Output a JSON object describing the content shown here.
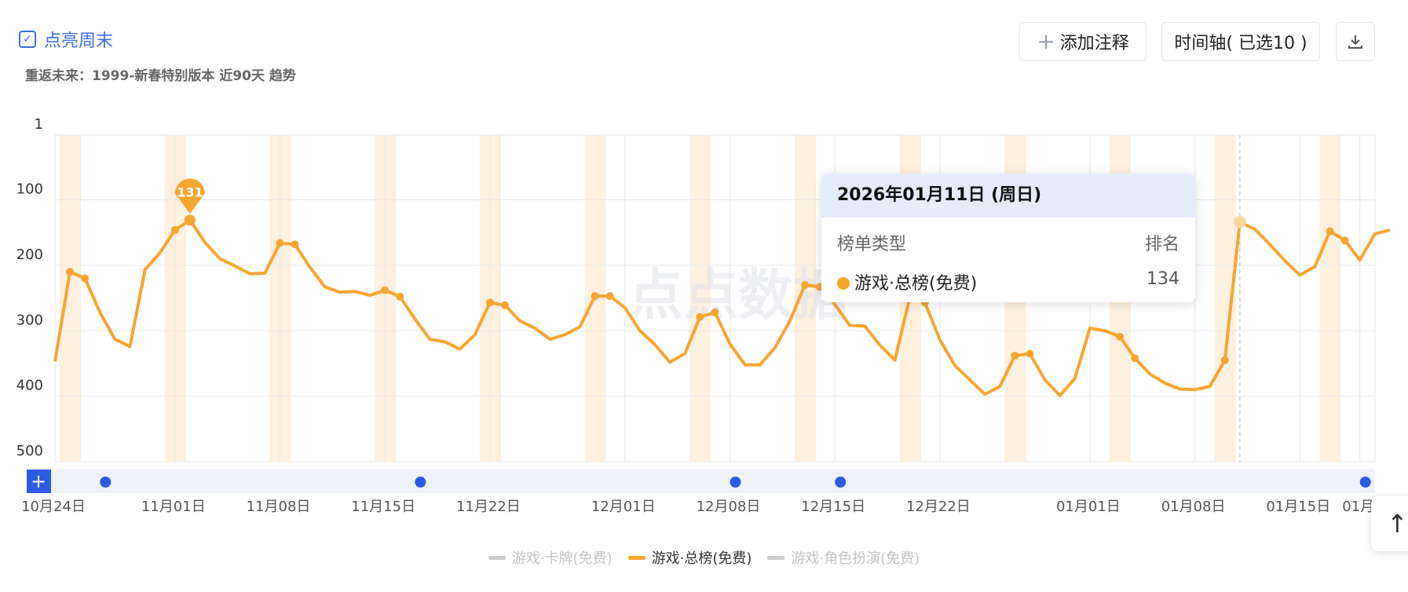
{
  "toggle": {
    "label": "点亮周末",
    "checked": true
  },
  "subtitle": "重返未来：1999-新春特别版本 近90天 趋势",
  "toolbar": {
    "add_note": "添加注释",
    "timeline": "时间轴( 已选10 )"
  },
  "watermark": "点点数据",
  "timeline_plus": "+",
  "colors": {
    "line": "#f7a531",
    "accent": "#2d5be3",
    "weekend": "#fdf0df",
    "grid": "#e8e8e8"
  },
  "tooltip": {
    "date": "2026年01月11日 (周日)",
    "col_type": "榜单类型",
    "col_rank": "排名",
    "series": "游戏·总榜(免费)",
    "rank": "134"
  },
  "scroll_top_icon": "arrow-up-icon",
  "chart_data": {
    "type": "line",
    "title": "",
    "y_axis": {
      "reversed": true,
      "ticks": [
        "1",
        "100",
        "200",
        "300",
        "400",
        "500"
      ],
      "range": [
        1,
        500
      ]
    },
    "x_axis": {
      "start": "10月24日",
      "tick_labels": [
        {
          "day": 0,
          "label": "10月24日"
        },
        {
          "day": 8,
          "label": "11月01日"
        },
        {
          "day": 15,
          "label": "11月08日"
        },
        {
          "day": 22,
          "label": "11月15日"
        },
        {
          "day": 29,
          "label": "11月22日"
        },
        {
          "day": 38,
          "label": "12月01日"
        },
        {
          "day": 45,
          "label": "12月08日"
        },
        {
          "day": 52,
          "label": "12月15日"
        },
        {
          "day": 59,
          "label": "12月22日"
        },
        {
          "day": 69,
          "label": "01月01日"
        },
        {
          "day": 76,
          "label": "01月08日"
        },
        {
          "day": 83,
          "label": "01月15日"
        },
        {
          "day": 87,
          "label": "01月"
        }
      ]
    },
    "weekend_days": [
      1,
      8,
      15,
      22,
      29,
      36,
      43,
      50,
      57,
      64,
      71,
      78,
      85
    ],
    "grid": true,
    "legend": {
      "placement": "bottom-center",
      "entries": [
        {
          "name": "游戏·卡牌(免费)",
          "active": false,
          "color": "#cccccc"
        },
        {
          "name": "游戏·总榜(免费)",
          "active": true,
          "color": "#f7a531"
        },
        {
          "name": "游戏·角色扮演(免费)",
          "active": false,
          "color": "#cccccc"
        }
      ]
    },
    "series": [
      {
        "name": "游戏·总榜(免费)",
        "values": [
          347,
          210,
          220,
          272,
          313,
          324,
          207,
          181,
          146,
          131,
          165,
          190,
          201,
          213,
          212,
          166,
          168,
          203,
          233,
          241,
          240,
          246,
          238,
          248,
          282,
          313,
          317,
          328,
          306,
          257,
          261,
          285,
          296,
          313,
          306,
          294,
          247,
          247,
          265,
          300,
          321,
          348,
          335,
          279,
          272,
          320,
          352,
          352,
          326,
          285,
          230,
          233,
          260,
          292,
          293,
          322,
          345,
          248,
          257,
          314,
          353,
          375,
          397,
          385,
          338,
          335,
          375,
          399,
          373,
          296,
          300,
          309,
          342,
          366,
          380,
          389,
          390,
          385,
          345,
          134,
          145,
          168,
          193,
          215,
          202,
          148,
          162,
          192,
          152,
          146
        ],
        "marked": [
          1,
          2,
          8,
          9,
          15,
          16,
          22,
          23,
          29,
          30,
          36,
          37,
          43,
          44,
          50,
          51,
          57,
          58,
          64,
          65,
          71,
          72,
          78,
          79,
          85,
          86
        ]
      }
    ],
    "peak_label": {
      "day": 9,
      "value": "131"
    },
    "highlight_day": 79,
    "event_markers": [
      3,
      24,
      45,
      52,
      87
    ]
  }
}
